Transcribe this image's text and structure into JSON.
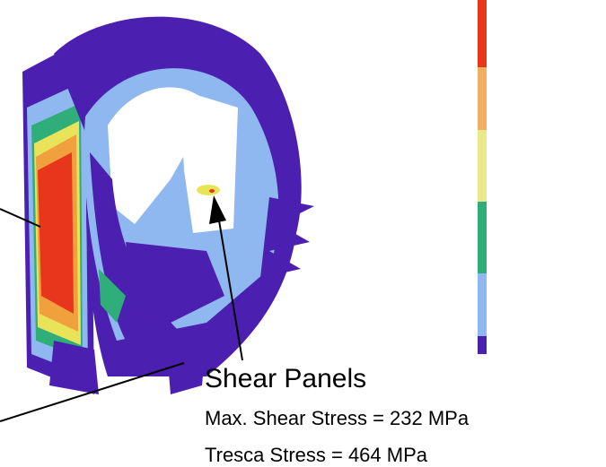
{
  "annotation": {
    "title": "Shear Panels",
    "lines": [
      "Max. Shear Stress = 232 MPa",
      "Tresca Stress = 464 MPa"
    ]
  }
}
